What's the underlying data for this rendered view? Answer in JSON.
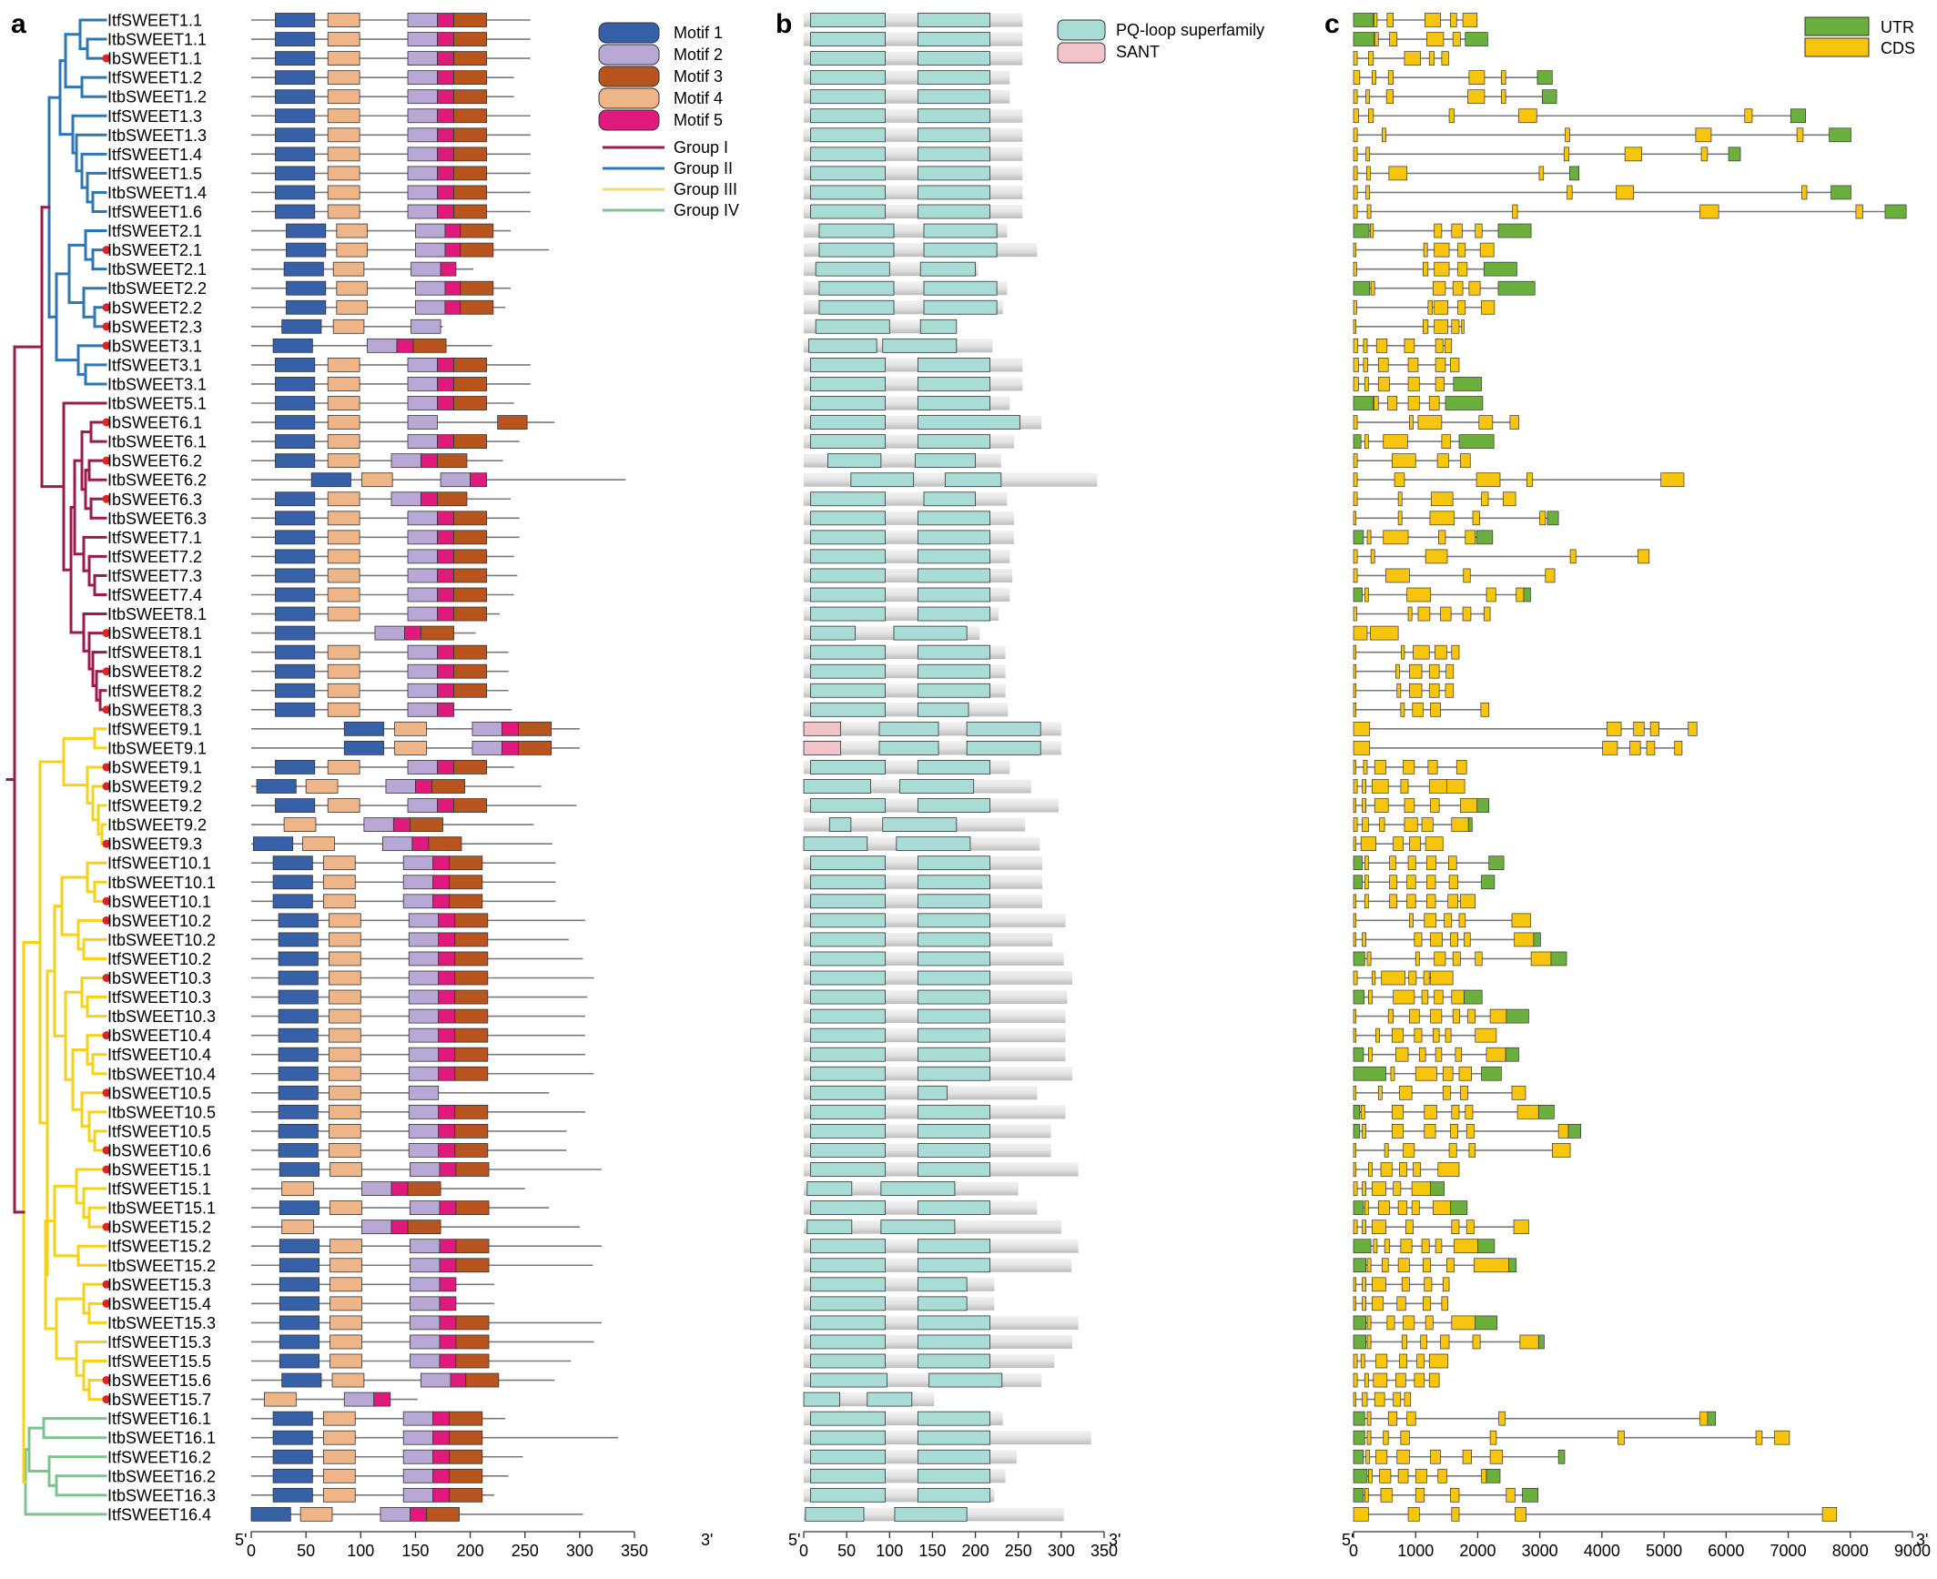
{
  "panel_letters": {
    "a": "a",
    "b": "b",
    "c": "c"
  },
  "axis_ends": {
    "five": "5'",
    "three": "3'"
  },
  "groups": [
    {
      "name": "Group I",
      "color": "#9B1C4B"
    },
    {
      "name": "Group II",
      "color": "#2E77B4"
    },
    {
      "name": "Group III",
      "color": "#F5D76E"
    },
    {
      "name": "Group IV",
      "color": "#7BC58D"
    }
  ],
  "tree_colors": {
    "I": "#9B1C4B",
    "II": "#2E77B4",
    "III": "#F6D21B",
    "IV": "#7BC58D"
  },
  "motifs": [
    {
      "name": "Motif 1",
      "color": "#3661A8"
    },
    {
      "name": "Motif 2",
      "color": "#B7A8D5"
    },
    {
      "name": "Motif 3",
      "color": "#B8541E"
    },
    {
      "name": "Motif 4",
      "color": "#EEB589"
    },
    {
      "name": "Motif 5",
      "color": "#E01A7C"
    }
  ],
  "domains": [
    {
      "name": "PQ-loop superfamily",
      "color": "#A9DCD4"
    },
    {
      "name": "SANT",
      "color": "#F0C4C8"
    }
  ],
  "structure_legend": [
    {
      "name": "UTR",
      "color": "#6BAF3F"
    },
    {
      "name": "CDS",
      "color": "#F7C50D"
    }
  ],
  "genes": [
    {
      "name": "ItfSWEET1.1",
      "group": "II",
      "dot": false,
      "len": 255
    },
    {
      "name": "ItbSWEET1.1",
      "group": "II",
      "dot": false,
      "len": 255
    },
    {
      "name": "IbSWEET1.1",
      "group": "II",
      "dot": true,
      "len": 255
    },
    {
      "name": "ItfSWEET1.2",
      "group": "II",
      "dot": false,
      "len": 240
    },
    {
      "name": "ItbSWEET1.2",
      "group": "II",
      "dot": false,
      "len": 240
    },
    {
      "name": "ItfSWEET1.3",
      "group": "II",
      "dot": false,
      "len": 255
    },
    {
      "name": "ItbSWEET1.3",
      "group": "II",
      "dot": false,
      "len": 255
    },
    {
      "name": "ItfSWEET1.4",
      "group": "II",
      "dot": false,
      "len": 255
    },
    {
      "name": "ItfSWEET1.5",
      "group": "II",
      "dot": false,
      "len": 255
    },
    {
      "name": "ItbSWEET1.4",
      "group": "II",
      "dot": false,
      "len": 255
    },
    {
      "name": "ItfSWEET1.6",
      "group": "II",
      "dot": false,
      "len": 255
    },
    {
      "name": "ItfSWEET2.1",
      "group": "II",
      "dot": false,
      "len": 237
    },
    {
      "name": "IbSWEET2.1",
      "group": "II",
      "dot": true,
      "len": 272
    },
    {
      "name": "ItbSWEET2.1",
      "group": "II",
      "dot": false,
      "len": 203
    },
    {
      "name": "ItbSWEET2.2",
      "group": "II",
      "dot": false,
      "len": 237
    },
    {
      "name": "IbSWEET2.2",
      "group": "II",
      "dot": true,
      "len": 232
    },
    {
      "name": "IbSWEET2.3",
      "group": "II",
      "dot": true,
      "len": 175
    },
    {
      "name": "IbSWEET3.1",
      "group": "II",
      "dot": true,
      "len": 220
    },
    {
      "name": "ItfSWEET3.1",
      "group": "II",
      "dot": false,
      "len": 255
    },
    {
      "name": "ItbSWEET3.1",
      "group": "II",
      "dot": false,
      "len": 255
    },
    {
      "name": "ItbSWEET5.1",
      "group": "I",
      "dot": false,
      "len": 240
    },
    {
      "name": "IbSWEET6.1",
      "group": "I",
      "dot": true,
      "len": 277
    },
    {
      "name": "ItbSWEET6.1",
      "group": "I",
      "dot": false,
      "len": 245
    },
    {
      "name": "IbSWEET6.2",
      "group": "I",
      "dot": true,
      "len": 230
    },
    {
      "name": "ItbSWEET6.2",
      "group": "I",
      "dot": false,
      "len": 342
    },
    {
      "name": "IbSWEET6.3",
      "group": "I",
      "dot": true,
      "len": 237
    },
    {
      "name": "ItbSWEET6.3",
      "group": "I",
      "dot": false,
      "len": 245
    },
    {
      "name": "ItfSWEET7.1",
      "group": "I",
      "dot": false,
      "len": 245
    },
    {
      "name": "ItfSWEET7.2",
      "group": "I",
      "dot": false,
      "len": 240
    },
    {
      "name": "ItfSWEET7.3",
      "group": "I",
      "dot": false,
      "len": 243
    },
    {
      "name": "ItfSWEET7.4",
      "group": "I",
      "dot": false,
      "len": 240
    },
    {
      "name": "ItbSWEET8.1",
      "group": "I",
      "dot": false,
      "len": 227
    },
    {
      "name": "IbSWEET8.1",
      "group": "I",
      "dot": true,
      "len": 205
    },
    {
      "name": "ItfSWEET8.1",
      "group": "I",
      "dot": false,
      "len": 235
    },
    {
      "name": "IbSWEET8.2",
      "group": "I",
      "dot": true,
      "len": 235
    },
    {
      "name": "ItfSWEET8.2",
      "group": "I",
      "dot": false,
      "len": 235
    },
    {
      "name": "IbSWEET8.3",
      "group": "I",
      "dot": true,
      "len": 238
    },
    {
      "name": "ItfSWEET9.1",
      "group": "III",
      "dot": false,
      "len": 300
    },
    {
      "name": "ItbSWEET9.1",
      "group": "III",
      "dot": false,
      "len": 300
    },
    {
      "name": "IbSWEET9.1",
      "group": "III",
      "dot": true,
      "len": 240
    },
    {
      "name": "IbSWEET9.2",
      "group": "III",
      "dot": true,
      "len": 265
    },
    {
      "name": "ItfSWEET9.2",
      "group": "III",
      "dot": false,
      "len": 297
    },
    {
      "name": "ItbSWEET9.2",
      "group": "III",
      "dot": false,
      "len": 258
    },
    {
      "name": "IbSWEET9.3",
      "group": "III",
      "dot": true,
      "len": 275
    },
    {
      "name": "ItfSWEET10.1",
      "group": "III",
      "dot": false,
      "len": 278
    },
    {
      "name": "ItbSWEET10.1",
      "group": "III",
      "dot": false,
      "len": 278
    },
    {
      "name": "IbSWEET10.1",
      "group": "III",
      "dot": true,
      "len": 278
    },
    {
      "name": "IbSWEET10.2",
      "group": "III",
      "dot": true,
      "len": 305
    },
    {
      "name": "ItbSWEET10.2",
      "group": "III",
      "dot": false,
      "len": 290
    },
    {
      "name": "ItfSWEET10.2",
      "group": "III",
      "dot": false,
      "len": 303
    },
    {
      "name": "IbSWEET10.3",
      "group": "III",
      "dot": true,
      "len": 313
    },
    {
      "name": "ItfSWEET10.3",
      "group": "III",
      "dot": false,
      "len": 307
    },
    {
      "name": "ItbSWEET10.3",
      "group": "III",
      "dot": false,
      "len": 305
    },
    {
      "name": "IbSWEET10.4",
      "group": "III",
      "dot": true,
      "len": 305
    },
    {
      "name": "ItfSWEET10.4",
      "group": "III",
      "dot": false,
      "len": 305
    },
    {
      "name": "ItbSWEET10.4",
      "group": "III",
      "dot": false,
      "len": 313
    },
    {
      "name": "IbSWEET10.5",
      "group": "III",
      "dot": true,
      "len": 272
    },
    {
      "name": "ItbSWEET10.5",
      "group": "III",
      "dot": false,
      "len": 305
    },
    {
      "name": "ItfSWEET10.5",
      "group": "III",
      "dot": false,
      "len": 288
    },
    {
      "name": "IbSWEET10.6",
      "group": "III",
      "dot": true,
      "len": 288
    },
    {
      "name": "IbSWEET15.1",
      "group": "III",
      "dot": true,
      "len": 320
    },
    {
      "name": "ItfSWEET15.1",
      "group": "III",
      "dot": false,
      "len": 250
    },
    {
      "name": "ItbSWEET15.1",
      "group": "III",
      "dot": false,
      "len": 272
    },
    {
      "name": "IbSWEET15.2",
      "group": "III",
      "dot": true,
      "len": 300
    },
    {
      "name": "ItfSWEET15.2",
      "group": "III",
      "dot": false,
      "len": 320
    },
    {
      "name": "ItbSWEET15.2",
      "group": "III",
      "dot": false,
      "len": 312
    },
    {
      "name": "IbSWEET15.3",
      "group": "III",
      "dot": true,
      "len": 222
    },
    {
      "name": "IbSWEET15.4",
      "group": "III",
      "dot": true,
      "len": 222
    },
    {
      "name": "ItbSWEET15.3",
      "group": "III",
      "dot": false,
      "len": 320
    },
    {
      "name": "ItfSWEET15.3",
      "group": "III",
      "dot": false,
      "len": 313
    },
    {
      "name": "ItfSWEET15.5",
      "group": "III",
      "dot": false,
      "len": 292
    },
    {
      "name": "IbSWEET15.6",
      "group": "III",
      "dot": true,
      "len": 277
    },
    {
      "name": "IbSWEET15.7",
      "group": "III",
      "dot": true,
      "len": 152
    },
    {
      "name": "ItfSWEET16.1",
      "group": "IV",
      "dot": false,
      "len": 232
    },
    {
      "name": "ItbSWEET16.1",
      "group": "IV",
      "dot": false,
      "len": 335
    },
    {
      "name": "ItfSWEET16.2",
      "group": "IV",
      "dot": false,
      "len": 248
    },
    {
      "name": "ItbSWEET16.2",
      "group": "IV",
      "dot": false,
      "len": 235
    },
    {
      "name": "ItbSWEET16.3",
      "group": "IV",
      "dot": false,
      "len": 222
    },
    {
      "name": "ItfSWEET16.4",
      "group": "IV",
      "dot": false,
      "len": 303
    }
  ],
  "chart_data": [
    {
      "type": "table",
      "panel": "a",
      "xlim": [
        0,
        350
      ],
      "xticks": [
        0,
        50,
        100,
        150,
        200,
        250,
        300,
        350
      ]
    },
    {
      "type": "table",
      "panel": "b",
      "xlim": [
        0,
        350
      ],
      "xticks": [
        0,
        50,
        100,
        150,
        200,
        250,
        300,
        350
      ]
    },
    {
      "type": "table",
      "panel": "c",
      "xlim": [
        0,
        9000
      ],
      "xticks": [
        0,
        1000,
        2000,
        3000,
        4000,
        5000,
        6000,
        7000,
        8000,
        9000
      ]
    }
  ]
}
